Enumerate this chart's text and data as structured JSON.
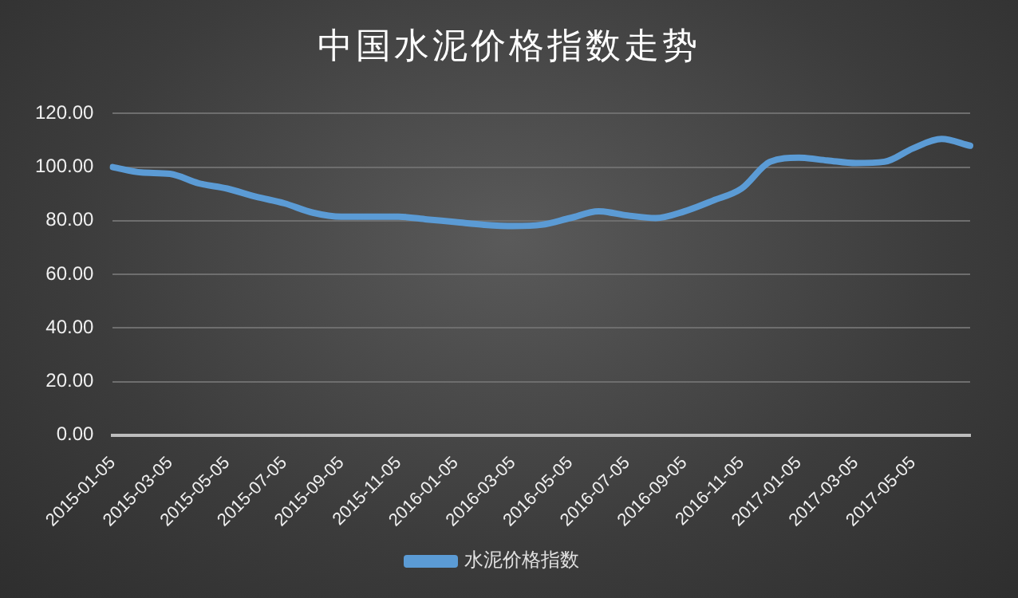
{
  "chart_data": {
    "type": "line",
    "title": "中国水泥价格指数走势",
    "categories": [
      "2015-01-05",
      null,
      "2015-03-05",
      null,
      "2015-05-05",
      null,
      "2015-07-05",
      null,
      "2015-09-05",
      null,
      "2015-11-05",
      null,
      "2016-01-05",
      null,
      "2016-03-05",
      null,
      "2016-05-05",
      null,
      "2016-07-05",
      null,
      "2016-09-05",
      null,
      "2016-11-05",
      null,
      "2017-01-05",
      null,
      "2017-03-05",
      null,
      "2017-05-05",
      null,
      null
    ],
    "series": [
      {
        "name": "水泥价格指数",
        "color": "#5b9bd5",
        "values": [
          100,
          98,
          97.5,
          94,
          92,
          89,
          86.5,
          83,
          81.5,
          81.5,
          81.5,
          80.5,
          79.5,
          78.5,
          78,
          78.5,
          81,
          83.5,
          82,
          81,
          83.5,
          87.5,
          92,
          102,
          103.5,
          102.5,
          101.5,
          102,
          107,
          110.5,
          108
        ]
      }
    ],
    "ylim": [
      0,
      120
    ],
    "yticks": [
      {
        "value": 0,
        "label": "0.00"
      },
      {
        "value": 20,
        "label": "20.00"
      },
      {
        "value": 40,
        "label": "40.00"
      },
      {
        "value": 60,
        "label": "60.00"
      },
      {
        "value": 80,
        "label": "80.00"
      },
      {
        "value": 100,
        "label": "100.00"
      },
      {
        "value": 120,
        "label": "120.00"
      }
    ],
    "grid": "y",
    "legend": "bottom",
    "marker": "none",
    "line_style": "solid"
  }
}
